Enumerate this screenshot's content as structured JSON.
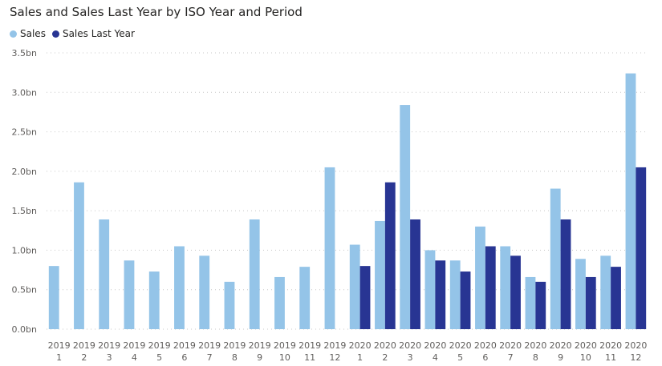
{
  "chart_data": {
    "type": "bar",
    "title": "Sales and Sales Last Year by ISO Year and Period",
    "xlabel": "",
    "ylabel": "",
    "ylim": [
      0,
      3.5
    ],
    "yticks": [
      {
        "value": 0,
        "label": "0.0bn"
      },
      {
        "value": 0.5,
        "label": "0.5bn"
      },
      {
        "value": 1.0,
        "label": "1.0bn"
      },
      {
        "value": 1.5,
        "label": "1.5bn"
      },
      {
        "value": 2.0,
        "label": "2.0bn"
      },
      {
        "value": 2.5,
        "label": "2.5bn"
      },
      {
        "value": 3.0,
        "label": "3.0bn"
      },
      {
        "value": 3.5,
        "label": "3.5bn"
      }
    ],
    "categories": [
      {
        "year": "2019",
        "period": "1"
      },
      {
        "year": "2019",
        "period": "2"
      },
      {
        "year": "2019",
        "period": "3"
      },
      {
        "year": "2019",
        "period": "4"
      },
      {
        "year": "2019",
        "period": "5"
      },
      {
        "year": "2019",
        "period": "6"
      },
      {
        "year": "2019",
        "period": "7"
      },
      {
        "year": "2019",
        "period": "8"
      },
      {
        "year": "2019",
        "period": "9"
      },
      {
        "year": "2019",
        "period": "10"
      },
      {
        "year": "2019",
        "period": "11"
      },
      {
        "year": "2019",
        "period": "12"
      },
      {
        "year": "2020",
        "period": "1"
      },
      {
        "year": "2020",
        "period": "2"
      },
      {
        "year": "2020",
        "period": "3"
      },
      {
        "year": "2020",
        "period": "4"
      },
      {
        "year": "2020",
        "period": "5"
      },
      {
        "year": "2020",
        "period": "6"
      },
      {
        "year": "2020",
        "period": "7"
      },
      {
        "year": "2020",
        "period": "8"
      },
      {
        "year": "2020",
        "period": "9"
      },
      {
        "year": "2020",
        "period": "10"
      },
      {
        "year": "2020",
        "period": "11"
      },
      {
        "year": "2020",
        "period": "12"
      }
    ],
    "series": [
      {
        "name": "Sales",
        "color": "#94c4e8",
        "values": [
          0.8,
          1.86,
          1.39,
          0.87,
          0.73,
          1.05,
          0.93,
          0.6,
          1.39,
          0.66,
          0.79,
          2.05,
          1.07,
          1.37,
          2.84,
          1.0,
          0.87,
          1.3,
          1.05,
          0.66,
          1.78,
          0.89,
          0.93,
          3.24
        ]
      },
      {
        "name": "Sales Last Year",
        "color": "#283593",
        "values": [
          null,
          null,
          null,
          null,
          null,
          null,
          null,
          null,
          null,
          null,
          null,
          null,
          0.8,
          1.86,
          1.39,
          0.87,
          0.73,
          1.05,
          0.93,
          0.6,
          1.39,
          0.66,
          0.79,
          2.05
        ]
      }
    ],
    "legend_position": "top-left",
    "grid": true
  }
}
